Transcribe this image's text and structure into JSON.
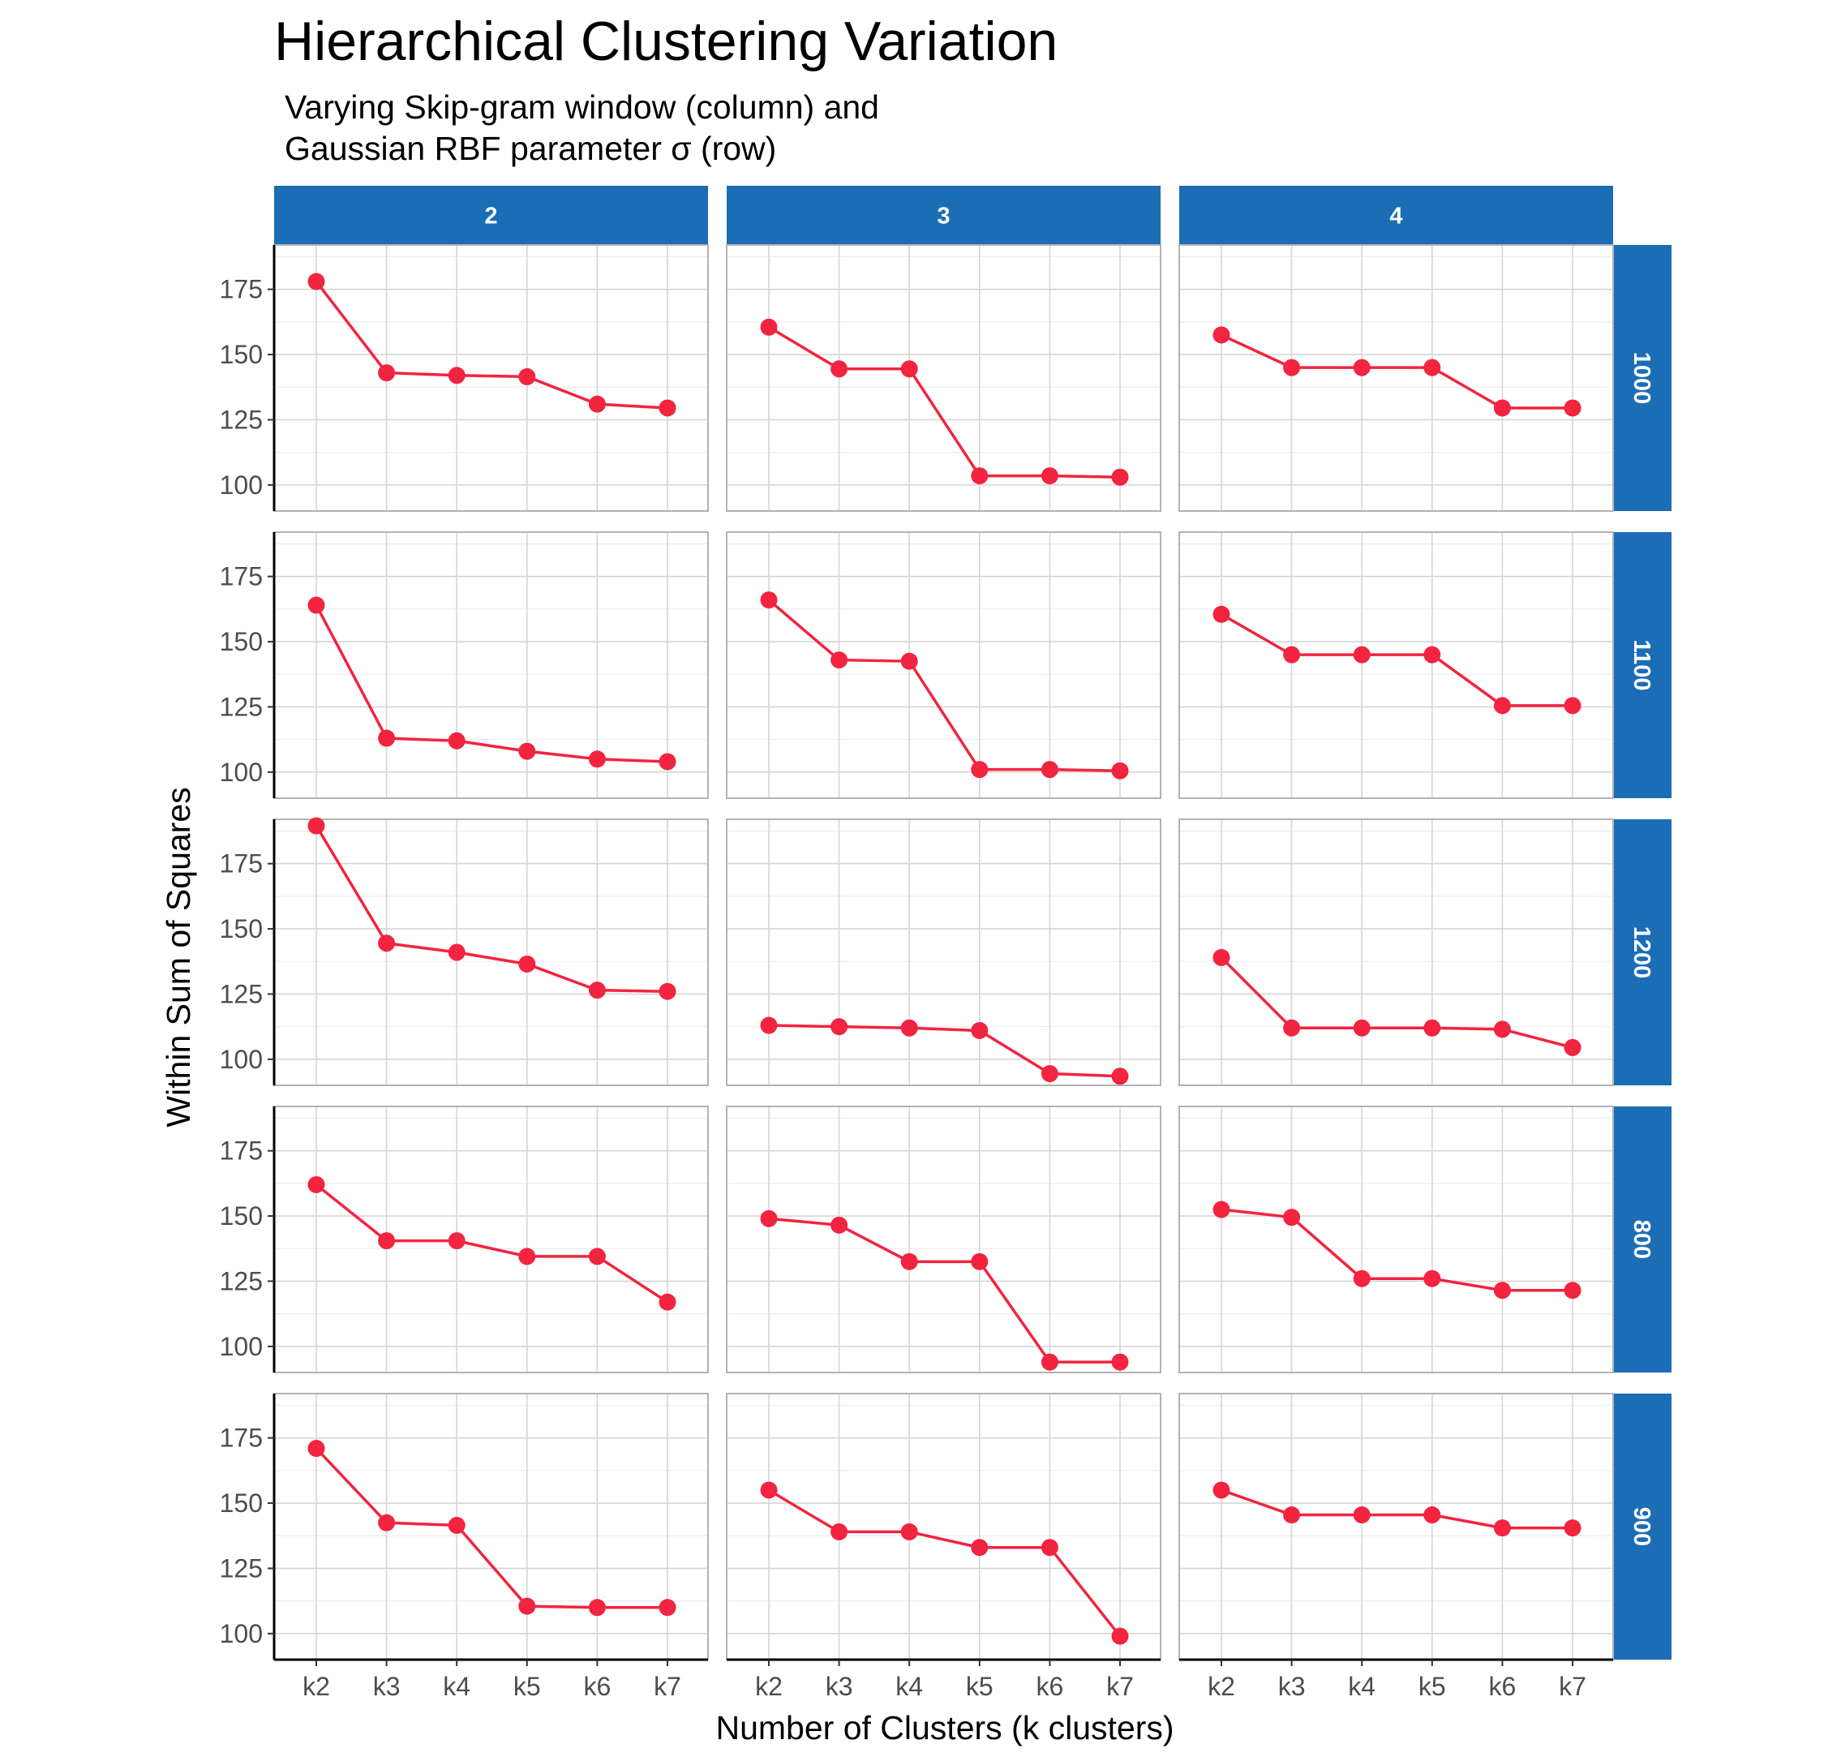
{
  "chart_data": {
    "type": "line",
    "title": "Hierarchical Clustering Variation",
    "subtitle": [
      "Varying Skip-gram window (column) and",
      "Gaussian RBF parameter σ (row)"
    ],
    "xlabel": "Number of Clusters (k clusters)",
    "ylabel": "Within Sum of Squares",
    "categories": [
      "k2",
      "k3",
      "k4",
      "k5",
      "k6",
      "k7"
    ],
    "ylim": [
      90,
      192
    ],
    "yticks": [
      100,
      125,
      150,
      175
    ],
    "facet_columns": [
      "2",
      "3",
      "4"
    ],
    "facet_rows": [
      "1000",
      "1100",
      "1200",
      "800",
      "900"
    ],
    "grid": true,
    "line_color": "#f2243f",
    "strip_color": "#1b6db5",
    "panels": [
      {
        "row": "1000",
        "column": "2",
        "values": [
          178,
          143,
          142,
          141.5,
          131,
          129.5
        ]
      },
      {
        "row": "1000",
        "column": "3",
        "values": [
          160.5,
          144.5,
          144.5,
          103.5,
          103.5,
          103
        ]
      },
      {
        "row": "1000",
        "column": "4",
        "values": [
          157.5,
          145,
          145,
          145,
          129.5,
          129.5
        ]
      },
      {
        "row": "1100",
        "column": "2",
        "values": [
          164,
          113,
          112,
          108,
          105,
          104
        ]
      },
      {
        "row": "1100",
        "column": "3",
        "values": [
          166,
          143,
          142.5,
          101,
          101,
          100.5
        ]
      },
      {
        "row": "1100",
        "column": "4",
        "values": [
          160.5,
          145,
          145,
          145,
          125.5,
          125.5
        ]
      },
      {
        "row": "1200",
        "column": "2",
        "values": [
          189.5,
          144.5,
          141,
          136.5,
          126.5,
          126
        ]
      },
      {
        "row": "1200",
        "column": "3",
        "values": [
          113,
          112.5,
          112,
          111,
          94.5,
          93.5
        ]
      },
      {
        "row": "1200",
        "column": "4",
        "values": [
          139,
          112,
          112,
          112,
          111.5,
          104.5
        ]
      },
      {
        "row": "800",
        "column": "2",
        "values": [
          162,
          140.5,
          140.5,
          134.5,
          134.5,
          117
        ]
      },
      {
        "row": "800",
        "column": "3",
        "values": [
          149,
          146.5,
          132.5,
          132.5,
          94,
          94
        ]
      },
      {
        "row": "800",
        "column": "4",
        "values": [
          152.5,
          149.5,
          126,
          126,
          121.5,
          121.5
        ]
      },
      {
        "row": "900",
        "column": "2",
        "values": [
          171,
          142.5,
          141.5,
          110.5,
          110,
          110
        ]
      },
      {
        "row": "900",
        "column": "3",
        "values": [
          155,
          139,
          139,
          133,
          133,
          99
        ]
      },
      {
        "row": "900",
        "column": "4",
        "values": [
          155,
          145.5,
          145.5,
          145.5,
          140.5,
          140.5
        ]
      }
    ]
  }
}
